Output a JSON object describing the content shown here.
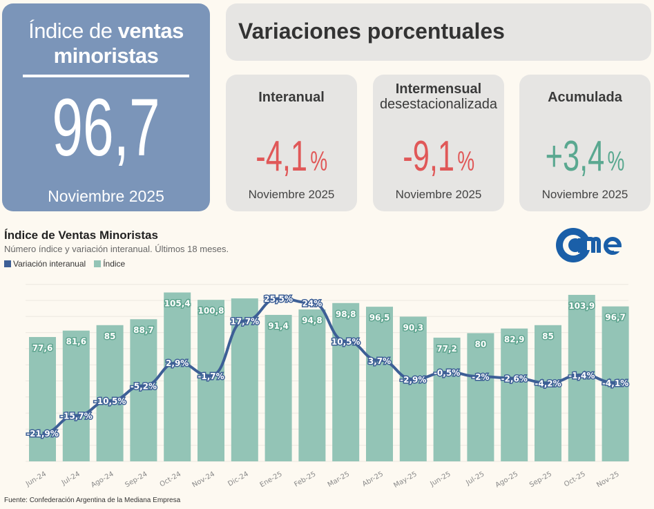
{
  "main_card": {
    "title_light": "Índice de ",
    "title_bold_1": "ventas",
    "title_bold_2": "minoristas",
    "value": "96,7",
    "date": "Noviembre 2025"
  },
  "header": {
    "title": "Variaciones porcentuales"
  },
  "variations": [
    {
      "label": "Interanual",
      "sublabel": "",
      "value": "-4,1",
      "unit": "%",
      "date": "Noviembre 2025",
      "color": "#e05858"
    },
    {
      "label": "Intermensual",
      "sublabel": "desestacionalizada",
      "value": "-9,1",
      "unit": "%",
      "date": "Noviembre 2025",
      "color": "#e05858"
    },
    {
      "label": "Acumulada",
      "sublabel": "",
      "value": "+3,4",
      "unit": "%",
      "date": "Noviembre 2025",
      "color": "#5aa890"
    }
  ],
  "logo": {
    "text": "came",
    "color": "#1a5fa8"
  },
  "chart_data": {
    "type": "bar+line",
    "title": "Índice de Ventas Minoristas",
    "subtitle": "Número índice y variación interanual. Últimos 18 meses.",
    "categories": [
      "Jun-24",
      "Jul-24",
      "Ago-24",
      "Sep-24",
      "Oct-24",
      "Nov-24",
      "Dic-24",
      "Ene-25",
      "Feb-25",
      "Mar-25",
      "Abr-25",
      "May-25",
      "Jun-25",
      "Jul-25",
      "Ago-25",
      "Sep-25",
      "Oct-25",
      "Nov-25"
    ],
    "series": [
      {
        "name": "Índice",
        "type": "bar",
        "color": "#93c4b6",
        "values": [
          77.6,
          81.6,
          85,
          88.7,
          105.4,
          100.8,
          101.7,
          91.4,
          94.8,
          98.8,
          96.5,
          90.3,
          77.2,
          80,
          82.9,
          85,
          103.9,
          96.7
        ],
        "labels": [
          "77,6",
          "81,6",
          "85",
          "88,7",
          "105,4",
          "100,8",
          "",
          "91,4",
          "94,8",
          "98,8",
          "96,5",
          "90,3",
          "77,2",
          "80",
          "82,9",
          "85",
          "103,9",
          "96,7"
        ]
      },
      {
        "name": "Variación interanual",
        "type": "line",
        "color": "#3d5f96",
        "values": [
          -21.9,
          -15.7,
          -10.5,
          -5.2,
          2.9,
          -1.7,
          17.7,
          25.5,
          24,
          10.5,
          3.7,
          -2.9,
          -0.5,
          -2,
          -2.6,
          -4.2,
          -1.4,
          -4.1
        ],
        "labels": [
          "-21,9%",
          "-15,7%",
          "-10,5%",
          "-5,2%",
          "2,9%",
          "-1,7%",
          "17,7%",
          "25,5%",
          "24%",
          "10,5%",
          "3,7%",
          "-2,9%",
          "-0,5%",
          "-2%",
          "-2,6%",
          "-4,2%",
          "-1,4%",
          "-4,1%"
        ]
      }
    ],
    "grid": true,
    "legend": "top-left",
    "source": "Fuente: Confederación Argentina de la Mediana Empresa"
  }
}
